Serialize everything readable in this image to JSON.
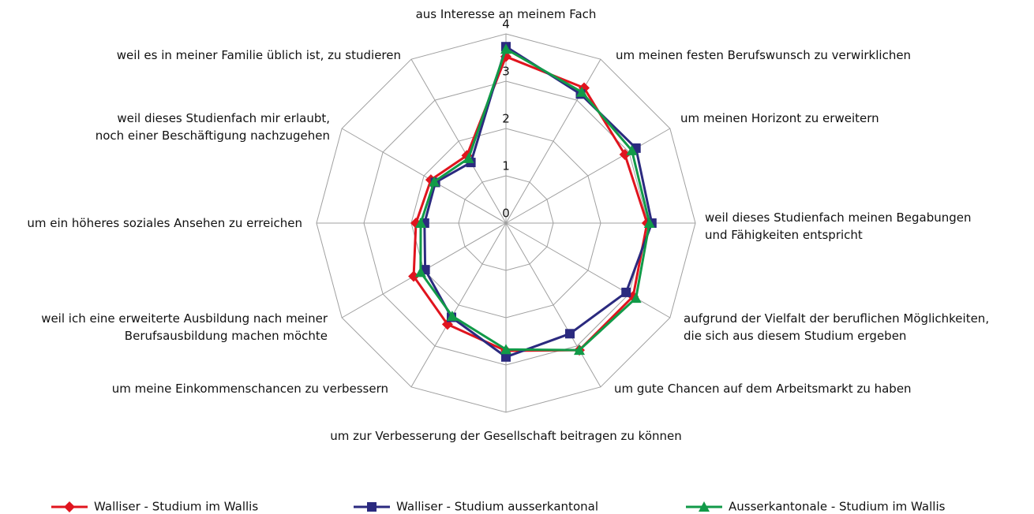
{
  "chart_data": {
    "type": "radar",
    "categories": [
      "aus Interesse an meinem Fach",
      "um meinen festen Berufswunsch zu verwirklichen",
      "um meinen Horizont zu erweitern",
      "weil dieses Studienfach meinen Begabungen\nund Fähigkeiten entspricht",
      "aufgrund der Vielfalt der beruflichen Möglichkeiten,\ndie sich aus diesem Studium ergeben",
      "um gute Chancen auf dem Arbeitsmarkt zu haben",
      "um zur Verbesserung der Gesellschaft beitragen zu können",
      "um meine Einkommenschancen zu verbessern",
      "weil ich eine erweiterte Ausbildung nach meiner\nBerufsausbildung machen möchte",
      "um ein höheres soziales Ansehen zu erreichen",
      "weil dieses Studienfach mir erlaubt,\nnoch einer Beschäftigung nachzugehen",
      "weil es in meiner Familie üblich ist,  zu studieren"
    ],
    "series": [
      {
        "name": "Walliser - Studium im Wallis",
        "color": "#e0141e",
        "marker": "diamond",
        "values": [
          3.52,
          3.3,
          2.9,
          2.98,
          3.1,
          3.1,
          2.7,
          2.47,
          2.25,
          1.9,
          1.83,
          1.65
        ]
      },
      {
        "name": "Walliser - Studium ausserkantonal",
        "color": "#2b2a7f",
        "marker": "square",
        "values": [
          3.73,
          3.15,
          3.17,
          3.08,
          2.93,
          2.7,
          2.83,
          2.3,
          1.97,
          1.72,
          1.72,
          1.48
        ]
      },
      {
        "name": "Ausserkantonale - Studium im Wallis",
        "color": "#119a48",
        "marker": "triangle",
        "values": [
          3.68,
          3.2,
          3.07,
          3.03,
          3.17,
          3.1,
          2.67,
          2.27,
          2.08,
          1.8,
          1.75,
          1.58
        ]
      }
    ],
    "rlim": [
      0,
      4
    ],
    "rticks": [
      0,
      1,
      2,
      3,
      4
    ],
    "grid": true,
    "legend": "bottom"
  }
}
